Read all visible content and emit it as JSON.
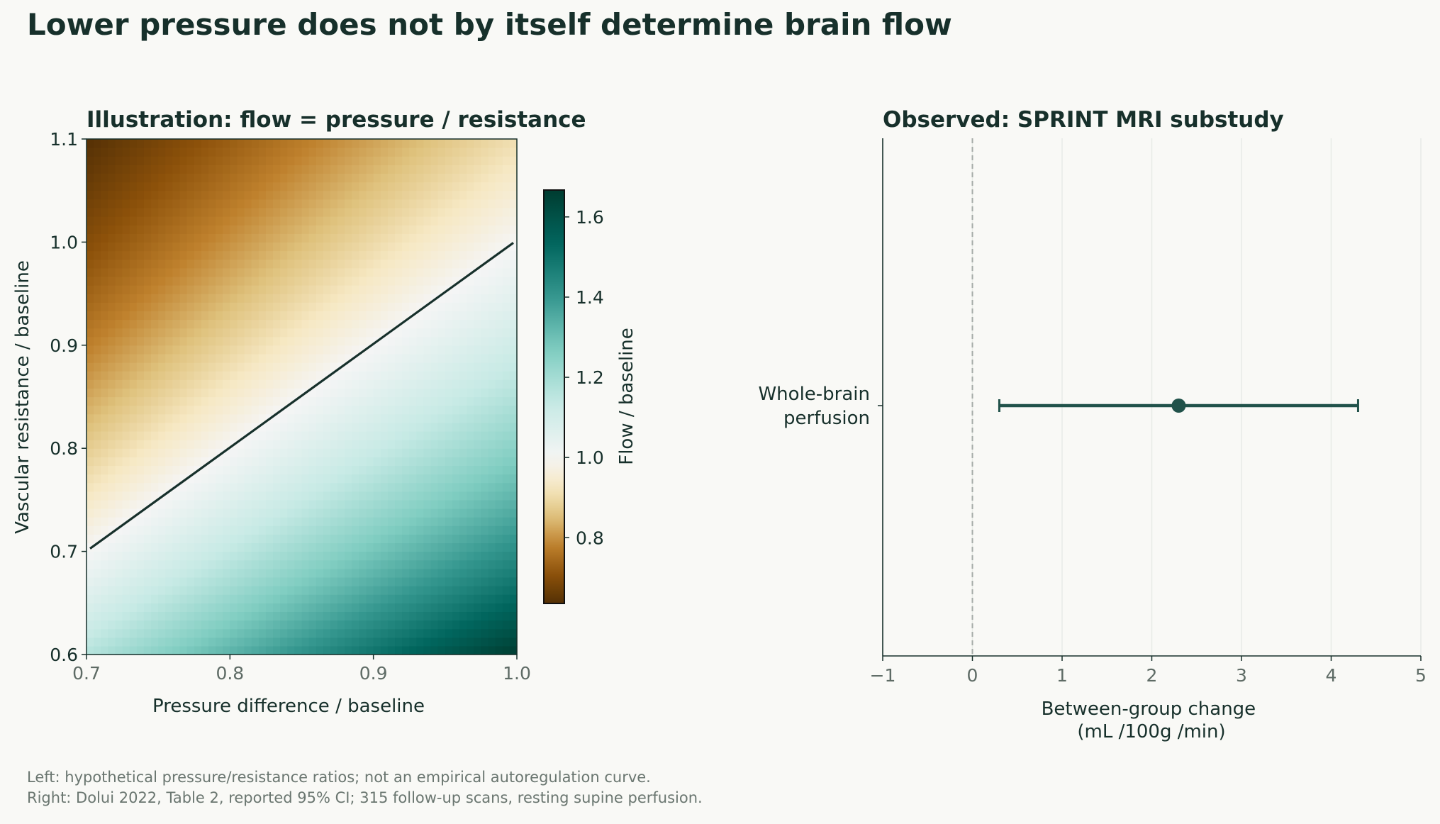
{
  "title": "Lower pressure does not by itself determine brain flow",
  "footnotes": [
    "Left: hypothetical pressure/resistance ratios; not an empirical autoregulation curve.",
    "Right: Dolui 2022, Table 2, reported 95% CI; 315 follow-up scans, resting supine perfusion."
  ],
  "colors": {
    "ink": "#17302b",
    "marker": "#21524a",
    "tick_gray": "#5e6b65",
    "grid": "#e8ebe7",
    "zero_line": "#a6aca8",
    "colormap_BrBG": [
      "#543005",
      "#8c510a",
      "#bf812d",
      "#dfc27d",
      "#f6e8c3",
      "#f5f5f5",
      "#c7eae5",
      "#80cdc1",
      "#35978f",
      "#01665e",
      "#003c30"
    ]
  },
  "chart_data": [
    {
      "type": "heatmap",
      "title": "Illustration: flow = pressure / resistance",
      "xlabel": "Pressure difference / baseline",
      "ylabel": "Vascular resistance / baseline",
      "xlim": [
        0.7,
        1.0
      ],
      "ylim": [
        0.6,
        1.1
      ],
      "x_ticks": [
        "0.7",
        "0.8",
        "0.9",
        "1.0"
      ],
      "y_ticks": [
        "0.6",
        "0.7",
        "0.8",
        "0.9",
        "1.0",
        "1.1"
      ],
      "grid_cells": [
        60,
        60
      ],
      "value_formula": "flow = pressure / resistance",
      "colorbar": {
        "label": "Flow / baseline",
        "range": [
          0.636,
          1.667
        ],
        "center": 1.0,
        "ticks": [
          "0.8",
          "1.0",
          "1.2",
          "1.4",
          "1.6"
        ],
        "colormap": "BrBG diverging, centered at 1.0"
      },
      "contour_line": {
        "value": 1.0,
        "points": [
          [
            0.7,
            0.7
          ],
          [
            1.0,
            1.0
          ]
        ]
      }
    },
    {
      "type": "scatter",
      "subtype": "forest-plot",
      "title": "Observed: SPRINT MRI substudy",
      "xlabel_lines": [
        "Between-group change",
        "(mL /100g /min)"
      ],
      "xlim": [
        -1,
        5
      ],
      "x_ticks": [
        "−1",
        "0",
        "1",
        "2",
        "3",
        "4",
        "5"
      ],
      "reference_line": 0,
      "grid": "vertical",
      "rows": [
        {
          "label_lines": [
            "Whole-brain",
            "perfusion"
          ],
          "estimate": 2.3,
          "ci_low": 0.3,
          "ci_high": 4.3
        }
      ]
    }
  ]
}
